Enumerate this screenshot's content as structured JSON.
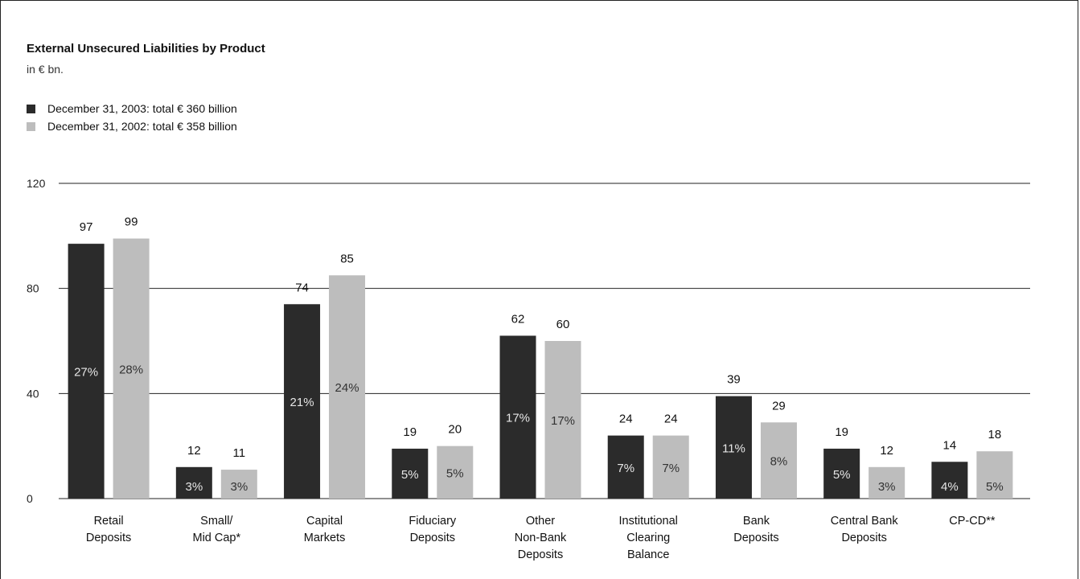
{
  "chart_data": {
    "type": "bar",
    "title": "External Unsecured Liabilities by Product",
    "subtitle": "in € bn.",
    "ylim": [
      0,
      120
    ],
    "yticks": [
      0,
      40,
      80,
      120
    ],
    "categories": [
      [
        "Retail",
        "Deposits"
      ],
      [
        "Small/",
        "Mid Cap*"
      ],
      [
        "Capital",
        "Markets"
      ],
      [
        "Fiduciary",
        "Deposits"
      ],
      [
        "Other",
        "Non-Bank",
        "Deposits"
      ],
      [
        "Institutional",
        "Clearing",
        "Balance"
      ],
      [
        "Bank",
        "Deposits"
      ],
      [
        "Central Bank",
        "Deposits"
      ],
      [
        "CP-CD**"
      ]
    ],
    "series": [
      {
        "name": "December 31, 2003: total € 360 billion",
        "color": "#2b2b2b",
        "values": [
          97,
          12,
          74,
          19,
          62,
          24,
          39,
          19,
          14
        ],
        "shares": [
          "27%",
          "3%",
          "21%",
          "5%",
          "17%",
          "7%",
          "11%",
          "5%",
          "4%"
        ]
      },
      {
        "name": "December 31, 2002: total € 358 billion",
        "color": "#bdbdbd",
        "values": [
          99,
          11,
          85,
          20,
          60,
          24,
          29,
          12,
          18
        ],
        "shares": [
          "28%",
          "3%",
          "24%",
          "5%",
          "17%",
          "7%",
          "8%",
          "3%",
          "5%"
        ]
      }
    ],
    "grid": true,
    "legend_position": "top-left"
  }
}
